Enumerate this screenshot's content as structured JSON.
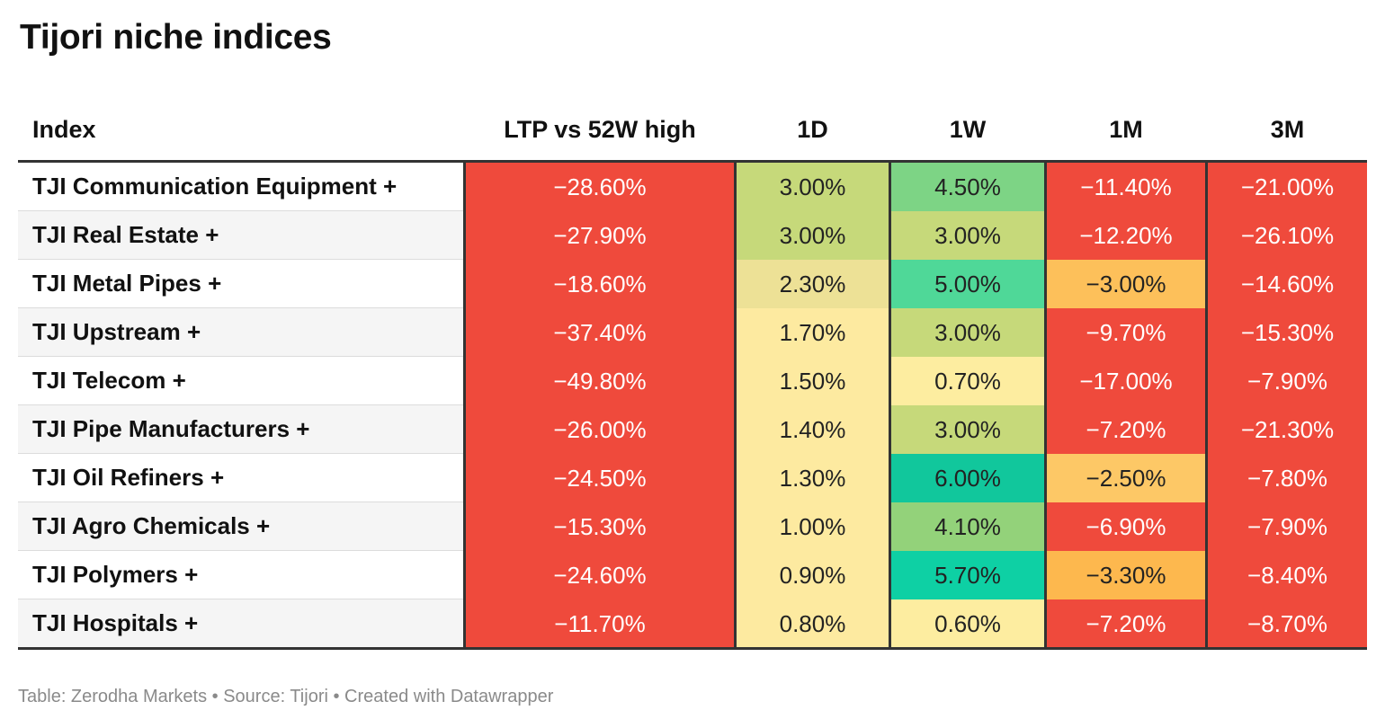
{
  "title": "Tijori niche indices",
  "footer": "Table: Zerodha Markets • Source: Tijori • Created with Datawrapper",
  "chart_data": {
    "type": "table",
    "columns": [
      "Index",
      "LTP vs 52W high",
      "1D",
      "1W",
      "1M",
      "3M"
    ],
    "rows": [
      {
        "index": "TJI Communication Equipment +",
        "values": [
          "−28.60%",
          "3.00%",
          "4.50%",
          "−11.40%",
          "−21.00%"
        ]
      },
      {
        "index": "TJI Real Estate +",
        "values": [
          "−27.90%",
          "3.00%",
          "3.00%",
          "−12.20%",
          "−26.10%"
        ]
      },
      {
        "index": "TJI Metal Pipes +",
        "values": [
          "−18.60%",
          "2.30%",
          "5.00%",
          "−3.00%",
          "−14.60%"
        ]
      },
      {
        "index": "TJI Upstream +",
        "values": [
          "−37.40%",
          "1.70%",
          "3.00%",
          "−9.70%",
          "−15.30%"
        ]
      },
      {
        "index": "TJI Telecom +",
        "values": [
          "−49.80%",
          "1.50%",
          "0.70%",
          "−17.00%",
          "−7.90%"
        ]
      },
      {
        "index": "TJI Pipe Manufacturers +",
        "values": [
          "−26.00%",
          "1.40%",
          "3.00%",
          "−7.20%",
          "−21.30%"
        ]
      },
      {
        "index": "TJI Oil Refiners +",
        "values": [
          "−24.50%",
          "1.30%",
          "6.00%",
          "−2.50%",
          "−7.80%"
        ]
      },
      {
        "index": "TJI Agro Chemicals +",
        "values": [
          "−15.30%",
          "1.00%",
          "4.10%",
          "−6.90%",
          "−7.90%"
        ]
      },
      {
        "index": "TJI Polymers +",
        "values": [
          "−24.60%",
          "0.90%",
          "5.70%",
          "−3.30%",
          "−8.40%"
        ]
      },
      {
        "index": "TJI Hospitals +",
        "values": [
          "−11.70%",
          "0.80%",
          "0.60%",
          "−7.20%",
          "−8.70%"
        ]
      }
    ],
    "cell_colors": [
      [
        "#ef4a3c",
        "#c6d97a",
        "#7dd485",
        "#ef4a3c",
        "#ef4a3c"
      ],
      [
        "#ef4a3c",
        "#c6d97a",
        "#c6d97a",
        "#ef4a3c",
        "#ef4a3c"
      ],
      [
        "#ef4a3c",
        "#ede196",
        "#4fd898",
        "#fdc05a",
        "#ef4a3c"
      ],
      [
        "#ef4a3c",
        "#fdeaa0",
        "#c6d97a",
        "#ef4a3c",
        "#ef4a3c"
      ],
      [
        "#ef4a3c",
        "#fdeaa0",
        "#fdeda0",
        "#ef4a3c",
        "#ef4a3c"
      ],
      [
        "#ef4a3c",
        "#fdeaa0",
        "#c6d97a",
        "#ef4a3c",
        "#ef4a3c"
      ],
      [
        "#ef4a3c",
        "#fdeaa0",
        "#11c79c",
        "#fdc866",
        "#ef4a3c"
      ],
      [
        "#ef4a3c",
        "#fdeaa0",
        "#93d27a",
        "#ef4a3c",
        "#ef4a3c"
      ],
      [
        "#ef4a3c",
        "#fdeaa0",
        "#0ed0a4",
        "#fdb84e",
        "#ef4a3c"
      ],
      [
        "#ef4a3c",
        "#fdeaa0",
        "#fdeda0",
        "#ef4a3c",
        "#ef4a3c"
      ]
    ]
  }
}
